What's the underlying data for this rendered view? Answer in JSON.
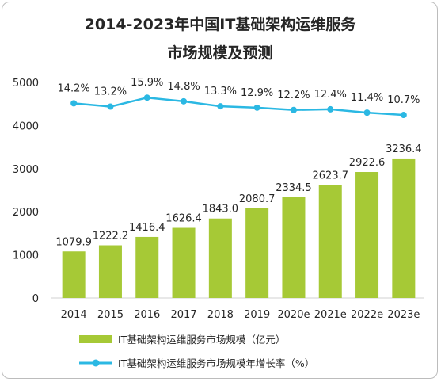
{
  "chart_data": {
    "type": "bar+line",
    "title_lines": [
      "2014-2023年中国IT基础架构运维服务",
      "市场规模及预测"
    ],
    "categories": [
      "2014",
      "2015",
      "2016",
      "2017",
      "2018",
      "2019",
      "2020e",
      "2021e",
      "2022e",
      "2023e"
    ],
    "series": [
      {
        "name": "IT基础架构运维服务市场规模（亿元）",
        "type": "bar",
        "color": "#a6c936",
        "values": [
          1079.9,
          1222.2,
          1416.4,
          1626.4,
          1843.0,
          2080.7,
          2334.5,
          2623.7,
          2922.6,
          3236.4
        ],
        "labels": [
          "1079.9",
          "1222.2",
          "1416.4",
          "1626.4",
          "1843.0",
          "2080.7",
          "2334.5",
          "2623.7",
          "2922.6",
          "3236.4"
        ]
      },
      {
        "name": "IT基础架构运维服务市场规模年增长率（%）",
        "type": "line",
        "color": "#2bb8e3",
        "values": [
          14.2,
          13.2,
          15.9,
          14.8,
          13.3,
          12.9,
          12.2,
          12.4,
          11.4,
          10.7
        ],
        "labels": [
          "14.2%",
          "13.2%",
          "15.9%",
          "14.8%",
          "13.3%",
          "12.9%",
          "12.2%",
          "12.4%",
          "11.4%",
          "10.7%"
        ]
      }
    ],
    "yticks": [
      "0",
      "1000",
      "2000",
      "3000",
      "4000",
      "5000"
    ],
    "ylim": [
      0,
      5000
    ],
    "legend_position": "bottom-center"
  }
}
